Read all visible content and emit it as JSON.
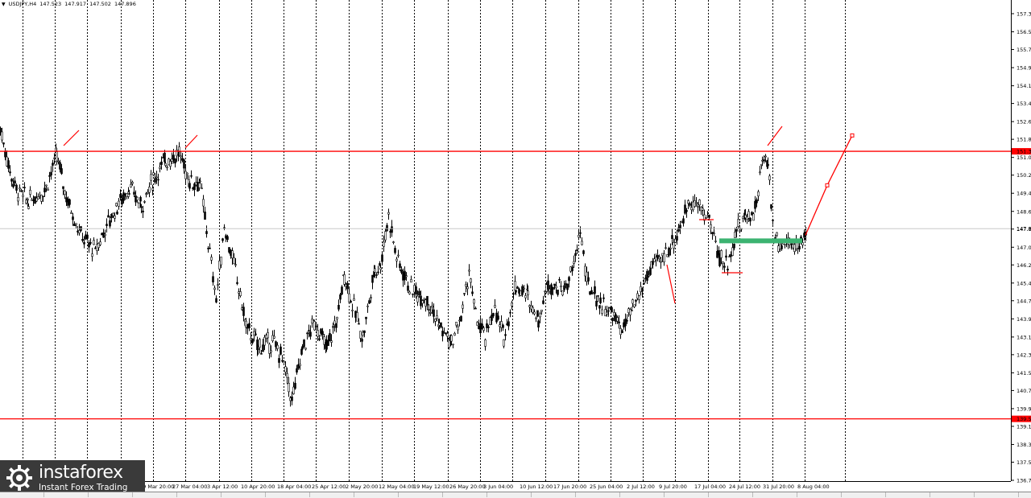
{
  "header": {
    "symbol": "USDJPY,H4",
    "open": "147.523",
    "high": "147.917",
    "low": "147.502",
    "close": "147.896"
  },
  "logo": {
    "name": "instaforex",
    "tagline": "Instant Forex Trading"
  },
  "colors": {
    "background": "#ffffff",
    "candles": "#000000",
    "grid": "#000000",
    "level_lines": "#ff0000",
    "support_zone": "#3cb371",
    "price_label_bg": "#ff0000"
  },
  "chart_data": {
    "type": "candlestick",
    "instrument": "USDJPY",
    "timeframe": "H4",
    "grid": true,
    "y_tick_labels": [
      "157.37",
      "156.57",
      "155.79",
      "154.99",
      "154.19",
      "153.41",
      "152.61",
      "151.83",
      "151.03",
      "150.25",
      "149.45",
      "148.65",
      "147.87",
      "147.07",
      "146.29",
      "145.49",
      "144.71",
      "143.91",
      "143.11",
      "142.33",
      "141.53",
      "140.75",
      "139.95",
      "139.17",
      "138.37",
      "137.59",
      "136.79"
    ],
    "y_range": [
      136.79,
      157.37
    ],
    "x_tick_labels": [
      "19 Mar 20:00",
      "27 Mar 04:00",
      "3 Apr 12:00",
      "10 Apr 20:00",
      "18 Apr 04:00",
      "25 Apr 12:00",
      "2 May 20:00",
      "12 May 04:00",
      "19 May 12:00",
      "26 May 20:00",
      "3 Jun 04:00",
      "10 Jun 12:00",
      "17 Jun 20:00",
      "25 Jun 04:00",
      "2 Jul 12:00",
      "9 Jul 20:00",
      "17 Jul 04:00",
      "24 Jul 12:00",
      "31 Jul 20:00",
      "8 Aug 04:00"
    ],
    "price_path": [
      {
        "x": 0,
        "y": 152.3
      },
      {
        "x": 12,
        "y": 150.4
      },
      {
        "x": 20,
        "y": 149.6
      },
      {
        "x": 35,
        "y": 149.1
      },
      {
        "x": 55,
        "y": 149.6
      },
      {
        "x": 70,
        "y": 151.1
      },
      {
        "x": 82,
        "y": 149.3
      },
      {
        "x": 100,
        "y": 147.6
      },
      {
        "x": 118,
        "y": 146.9
      },
      {
        "x": 130,
        "y": 147.9
      },
      {
        "x": 145,
        "y": 148.9
      },
      {
        "x": 160,
        "y": 149.7
      },
      {
        "x": 175,
        "y": 148.9
      },
      {
        "x": 190,
        "y": 150.1
      },
      {
        "x": 205,
        "y": 150.9
      },
      {
        "x": 222,
        "y": 151.2
      },
      {
        "x": 235,
        "y": 150.0
      },
      {
        "x": 248,
        "y": 149.9
      },
      {
        "x": 258,
        "y": 147.3
      },
      {
        "x": 268,
        "y": 144.8
      },
      {
        "x": 278,
        "y": 148.0
      },
      {
        "x": 292,
        "y": 146.0
      },
      {
        "x": 305,
        "y": 143.6
      },
      {
        "x": 320,
        "y": 142.7
      },
      {
        "x": 338,
        "y": 142.9
      },
      {
        "x": 350,
        "y": 142.2
      },
      {
        "x": 362,
        "y": 140.3
      },
      {
        "x": 375,
        "y": 142.6
      },
      {
        "x": 390,
        "y": 143.8
      },
      {
        "x": 405,
        "y": 142.6
      },
      {
        "x": 418,
        "y": 143.9
      },
      {
        "x": 427,
        "y": 145.9
      },
      {
        "x": 435,
        "y": 144.8
      },
      {
        "x": 450,
        "y": 143.1
      },
      {
        "x": 465,
        "y": 146.1
      },
      {
        "x": 472,
        "y": 146.3
      },
      {
        "x": 482,
        "y": 148.5
      },
      {
        "x": 492,
        "y": 146.6
      },
      {
        "x": 510,
        "y": 145.2
      },
      {
        "x": 530,
        "y": 144.8
      },
      {
        "x": 545,
        "y": 143.6
      },
      {
        "x": 560,
        "y": 142.8
      },
      {
        "x": 572,
        "y": 144.0
      },
      {
        "x": 582,
        "y": 146.0
      },
      {
        "x": 590,
        "y": 144.0
      },
      {
        "x": 602,
        "y": 143.0
      },
      {
        "x": 612,
        "y": 144.4
      },
      {
        "x": 625,
        "y": 143.1
      },
      {
        "x": 640,
        "y": 145.4
      },
      {
        "x": 655,
        "y": 144.9
      },
      {
        "x": 668,
        "y": 143.9
      },
      {
        "x": 680,
        "y": 145.5
      },
      {
        "x": 700,
        "y": 145.2
      },
      {
        "x": 712,
        "y": 146.2
      },
      {
        "x": 720,
        "y": 147.9
      },
      {
        "x": 728,
        "y": 145.5
      },
      {
        "x": 745,
        "y": 144.6
      },
      {
        "x": 760,
        "y": 144.1
      },
      {
        "x": 772,
        "y": 143.4
      },
      {
        "x": 785,
        "y": 144.3
      },
      {
        "x": 795,
        "y": 145.1
      },
      {
        "x": 808,
        "y": 146.2
      },
      {
        "x": 822,
        "y": 146.6
      },
      {
        "x": 838,
        "y": 147.5
      },
      {
        "x": 848,
        "y": 148.3
      },
      {
        "x": 856,
        "y": 149.2
      },
      {
        "x": 868,
        "y": 148.8
      },
      {
        "x": 880,
        "y": 148.3
      },
      {
        "x": 893,
        "y": 146.6
      },
      {
        "x": 903,
        "y": 146.3
      },
      {
        "x": 912,
        "y": 147.6
      },
      {
        "x": 925,
        "y": 148.4
      },
      {
        "x": 937,
        "y": 148.7
      },
      {
        "x": 946,
        "y": 150.8
      },
      {
        "x": 953,
        "y": 150.9
      },
      {
        "x": 960,
        "y": 147.6
      },
      {
        "x": 968,
        "y": 147.2
      },
      {
        "x": 980,
        "y": 147.4
      },
      {
        "x": 992,
        "y": 147.0
      },
      {
        "x": 1002,
        "y": 147.9
      }
    ],
    "horizontal_levels": [
      {
        "price": "151.3",
        "label": "151.3",
        "color": "#ff0000"
      },
      {
        "price": "139.5",
        "label": "139.5",
        "color": "#ff0000"
      },
      {
        "price": "147.89",
        "label": "147.89",
        "color": "#c0c0c0"
      }
    ],
    "support_zone": {
      "price": 147.35,
      "x_start": 893,
      "x_end": 996
    },
    "forecast_path": [
      {
        "x": 1000,
        "price": 147.6
      },
      {
        "x": 1027,
        "price": 149.8
      },
      {
        "x": 1058,
        "price": 152.0
      }
    ]
  }
}
